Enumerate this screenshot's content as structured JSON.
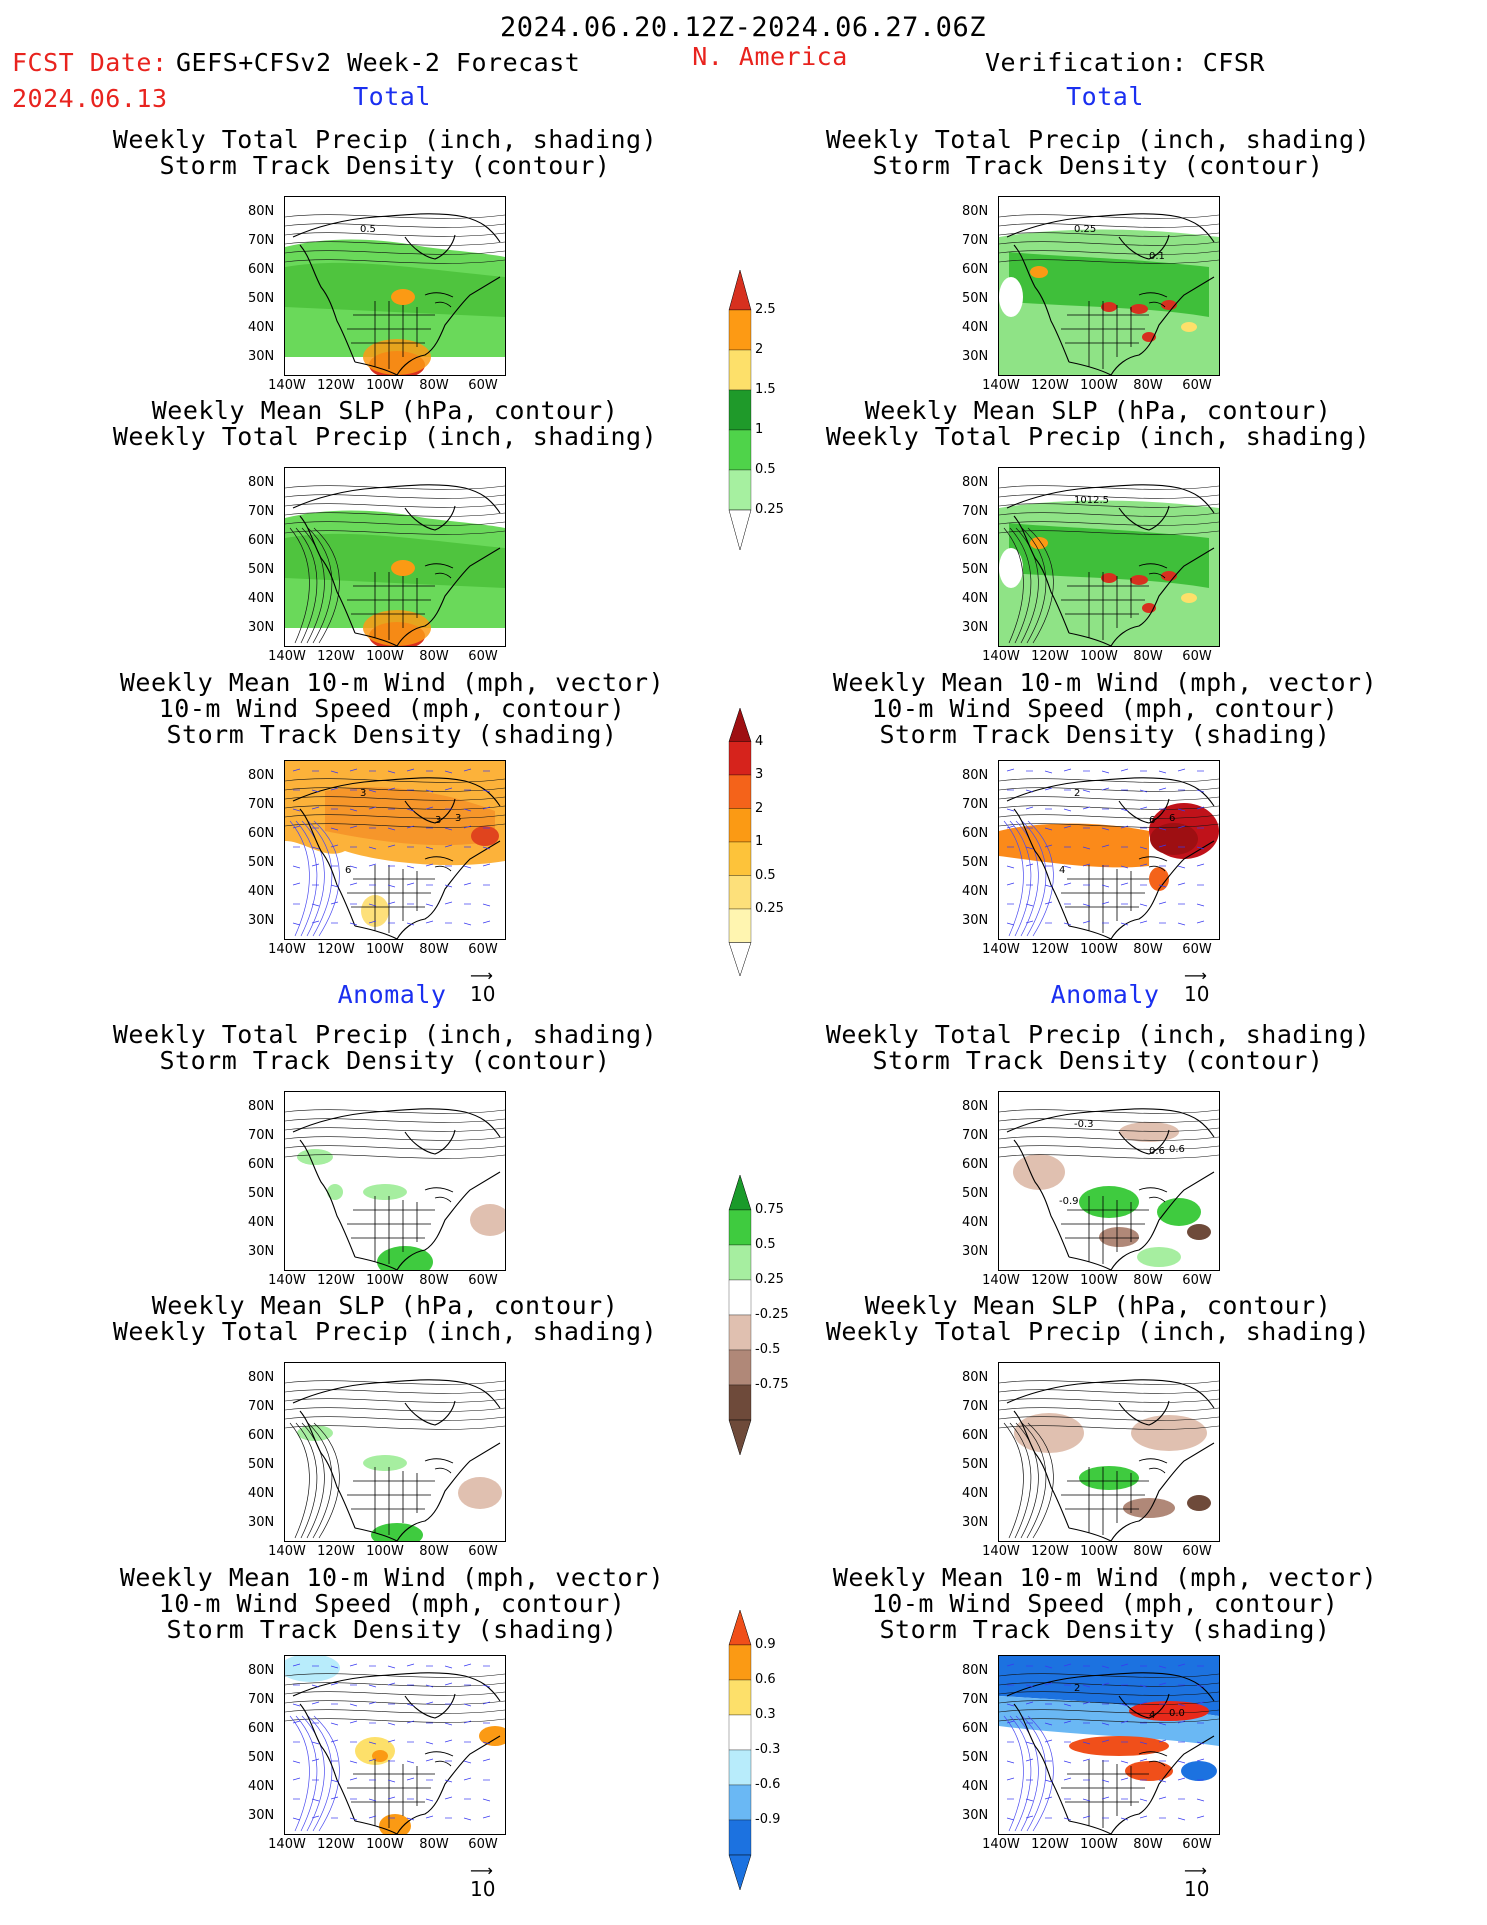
{
  "header": {
    "date_range": "2024.06.20.12Z-2024.06.27.06Z",
    "fcst_label": "FCST Date:",
    "fcst_model": "GEFS+CFSv2 Week-2 Forecast",
    "fcst_date": "2024.06.13",
    "region": "N. America",
    "verification": "Verification: CFSR"
  },
  "sections": {
    "total": "Total",
    "anomaly": "Anomaly"
  },
  "titles": {
    "precip_storm": [
      "Weekly Total Precip (inch, shading)",
      "Storm Track Density (contour)"
    ],
    "slp_precip": [
      "Weekly Mean SLP (hPa, contour)",
      "Weekly Total Precip (inch, shading)"
    ],
    "wind_storm": [
      "Weekly Mean 10-m Wind (mph, vector)",
      "10-m Wind Speed (mph, contour)",
      "Storm Track Density (shading)"
    ]
  },
  "axes": {
    "lat": [
      "80N",
      "70N",
      "60N",
      "50N",
      "40N",
      "30N"
    ],
    "lon": [
      "140W",
      "120W",
      "100W",
      "80W",
      "60W"
    ]
  },
  "vector_ref": "10",
  "colorbars": {
    "precip_total": {
      "labels": [
        "2.5",
        "2",
        "1.5",
        "1",
        "0.5",
        "0.25"
      ],
      "colors": [
        "#d7301f",
        "#fd9a14",
        "#fde06a",
        "#1f9a2a",
        "#4fd34a",
        "#a6f0a0"
      ]
    },
    "storm_total": {
      "labels": [
        "4",
        "3",
        "2",
        "1",
        "0.5",
        "0.25"
      ],
      "colors": [
        "#9e0f12",
        "#d6231c",
        "#f4631a",
        "#fb9a14",
        "#fdc33a",
        "#fde07a",
        "#fff5b0"
      ]
    },
    "precip_anom": {
      "labels": [
        "0.75",
        "0.5",
        "0.25",
        "-0.25",
        "-0.5",
        "-0.75"
      ],
      "colors": [
        "#1a9a2a",
        "#3fcb3f",
        "#a6eea0",
        "#ffffff",
        "#e0c0b0",
        "#b08878",
        "#6e4a3a"
      ]
    },
    "storm_anom": {
      "labels": [
        "0.9",
        "0.6",
        "0.3",
        "-0.3",
        "-0.6",
        "-0.9"
      ],
      "colors": [
        "#f04f1a",
        "#fb9a14",
        "#fde06a",
        "#ffffff",
        "#b8ecfb",
        "#6ab8f4",
        "#1c72e0"
      ]
    }
  },
  "map_labels": {
    "f_precip_total": [
      "0.5"
    ],
    "v_precip_total": [
      "0.25",
      "0.1"
    ],
    "v_slp_total": [
      "1012.5"
    ],
    "f_wind_total": [
      "3",
      "3",
      "3",
      "6"
    ],
    "v_wind_total": [
      "2",
      "6",
      "6",
      "4"
    ],
    "v_precip_anom": [
      "-0.3",
      "0.6",
      "0.6",
      "-0.9"
    ],
    "v_wind_anom": [
      "2",
      "4",
      "0.0"
    ]
  }
}
